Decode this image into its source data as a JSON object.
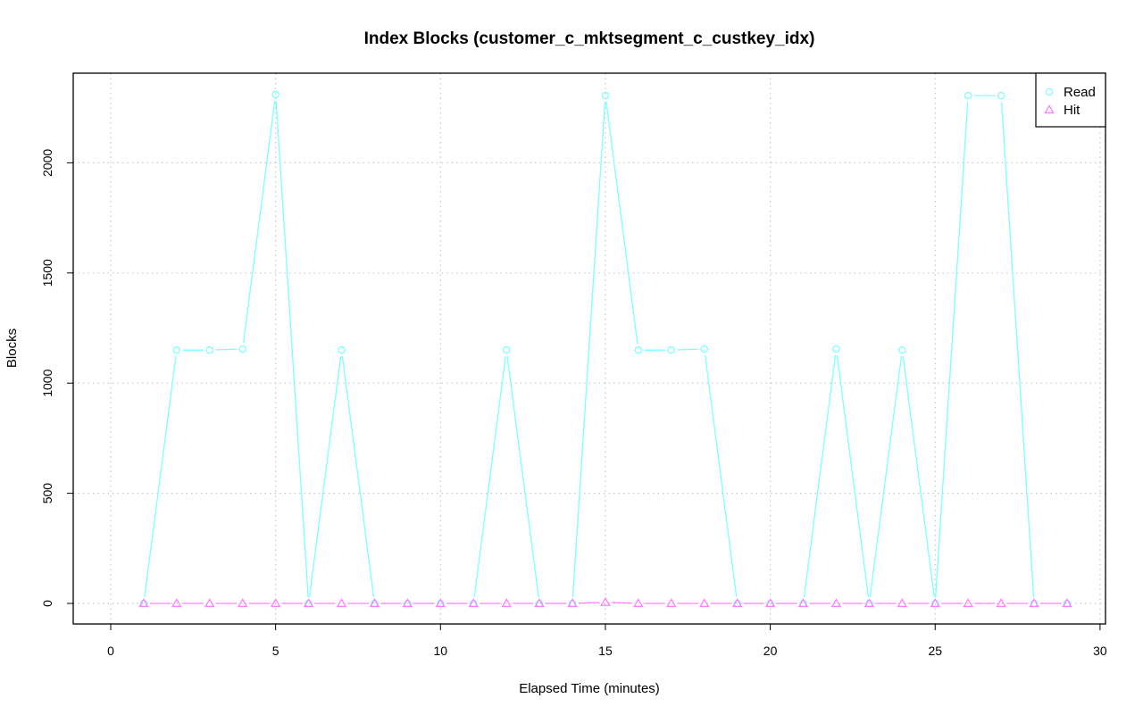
{
  "chart_data": {
    "type": "line",
    "title": "Index Blocks (customer_c_mktsegment_c_custkey_idx)",
    "xlabel": "Elapsed Time (minutes)",
    "ylabel": "Blocks",
    "xlim": [
      0,
      30
    ],
    "ylim": [
      0,
      2300
    ],
    "x_ticks": [
      0,
      5,
      10,
      15,
      20,
      25,
      30
    ],
    "y_ticks": [
      0,
      500,
      1000,
      1500,
      2000
    ],
    "grid": true,
    "legend_position": "top-right",
    "x": [
      1,
      2,
      3,
      4,
      5,
      6,
      7,
      8,
      9,
      10,
      11,
      12,
      13,
      14,
      15,
      16,
      17,
      18,
      19,
      20,
      21,
      22,
      23,
      24,
      25,
      26,
      27,
      28,
      29
    ],
    "series": [
      {
        "name": "Read",
        "color": "#7fffff",
        "marker": "circle",
        "values": [
          0,
          1150,
          1150,
          1155,
          2310,
          0,
          1150,
          0,
          0,
          0,
          0,
          1150,
          0,
          0,
          2305,
          1150,
          1150,
          1155,
          0,
          0,
          0,
          1155,
          0,
          1150,
          0,
          2305,
          2305,
          0,
          0
        ]
      },
      {
        "name": "Hit",
        "color": "#ff80ff",
        "marker": "triangle",
        "values": [
          0,
          0,
          0,
          0,
          0,
          0,
          0,
          0,
          0,
          0,
          0,
          0,
          0,
          0,
          5,
          0,
          0,
          0,
          0,
          0,
          0,
          0,
          0,
          0,
          0,
          0,
          0,
          0,
          0
        ]
      }
    ]
  }
}
